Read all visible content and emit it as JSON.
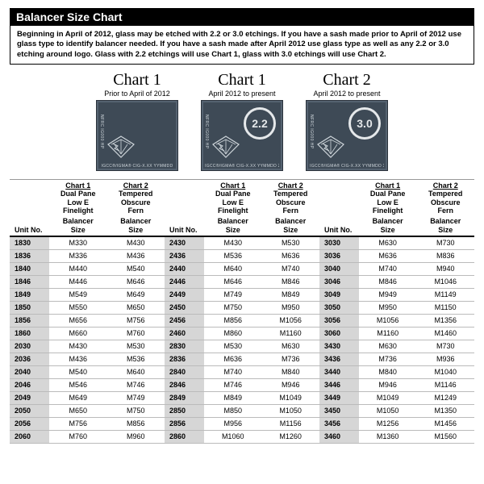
{
  "title": "Balancer Size Chart",
  "intro": "Beginning in April of 2012, glass may be etched with 2.2 or 3.0 etchings.  If you have a sash made prior to April of 2012 use glass type to identify balancer needed.  If you have a sash made after April 2012 use glass type as well as any 2.2 or 3.0 etching around logo. Glass with 2.2 etchings will use Chart 1, glass with 3.0 etchings will use Chart 2.",
  "glass": [
    {
      "title": "Chart 1",
      "sub": "Prior to April of 2012",
      "ring": ""
    },
    {
      "title": "Chart 1",
      "sub": "April 2012 to present",
      "ring": "2.2"
    },
    {
      "title": "Chart 2",
      "sub": "April 2012 to present",
      "ring": "3.0"
    }
  ],
  "tile_code": "IGCC®/IGMA® CIG-X.XX YYMMDD",
  "tile_side": "NFRC IG000 HP",
  "head": {
    "unit": "Unit No.",
    "c1_top": "Chart 1",
    "c1_lines": [
      "Dual Pane",
      "Low E",
      "Finelight"
    ],
    "c2_top": "Chart 2",
    "c2_lines": [
      "Tempered",
      "Obscure",
      "Fern"
    ],
    "bal": "Balancer",
    "size": "Size"
  },
  "rows": [
    [
      "1830",
      "M330",
      "M430",
      "2430",
      "M430",
      "M530",
      "3030",
      "M630",
      "M730"
    ],
    [
      "1836",
      "M336",
      "M436",
      "2436",
      "M536",
      "M636",
      "3036",
      "M636",
      "M836"
    ],
    [
      "1840",
      "M440",
      "M540",
      "2440",
      "M640",
      "M740",
      "3040",
      "M740",
      "M940"
    ],
    [
      "1846",
      "M446",
      "M646",
      "2446",
      "M646",
      "M846",
      "3046",
      "M846",
      "M1046"
    ],
    [
      "1849",
      "M549",
      "M649",
      "2449",
      "M749",
      "M849",
      "3049",
      "M949",
      "M1149"
    ],
    [
      "1850",
      "M550",
      "M650",
      "2450",
      "M750",
      "M950",
      "3050",
      "M950",
      "M1150"
    ],
    [
      "1856",
      "M656",
      "M756",
      "2456",
      "M856",
      "M1056",
      "3056",
      "M1056",
      "M1356"
    ],
    [
      "1860",
      "M660",
      "M760",
      "2460",
      "M860",
      "M1160",
      "3060",
      "M1160",
      "M1460"
    ],
    [
      "2030",
      "M430",
      "M530",
      "2830",
      "M530",
      "M630",
      "3430",
      "M630",
      "M730"
    ],
    [
      "2036",
      "M436",
      "M536",
      "2836",
      "M636",
      "M736",
      "3436",
      "M736",
      "M936"
    ],
    [
      "2040",
      "M540",
      "M640",
      "2840",
      "M740",
      "M840",
      "3440",
      "M840",
      "M1040"
    ],
    [
      "2046",
      "M546",
      "M746",
      "2846",
      "M746",
      "M946",
      "3446",
      "M946",
      "M1146"
    ],
    [
      "2049",
      "M649",
      "M749",
      "2849",
      "M849",
      "M1049",
      "3449",
      "M1049",
      "M1249"
    ],
    [
      "2050",
      "M650",
      "M750",
      "2850",
      "M850",
      "M1050",
      "3450",
      "M1050",
      "M1350"
    ],
    [
      "2056",
      "M756",
      "M856",
      "2856",
      "M956",
      "M1156",
      "3456",
      "M1256",
      "M1456"
    ],
    [
      "2060",
      "M760",
      "M960",
      "2860",
      "M1060",
      "M1260",
      "3460",
      "M1360",
      "M1560"
    ]
  ],
  "colors": {
    "tile": "#3e4a56",
    "shade": "#d6d6d6"
  }
}
